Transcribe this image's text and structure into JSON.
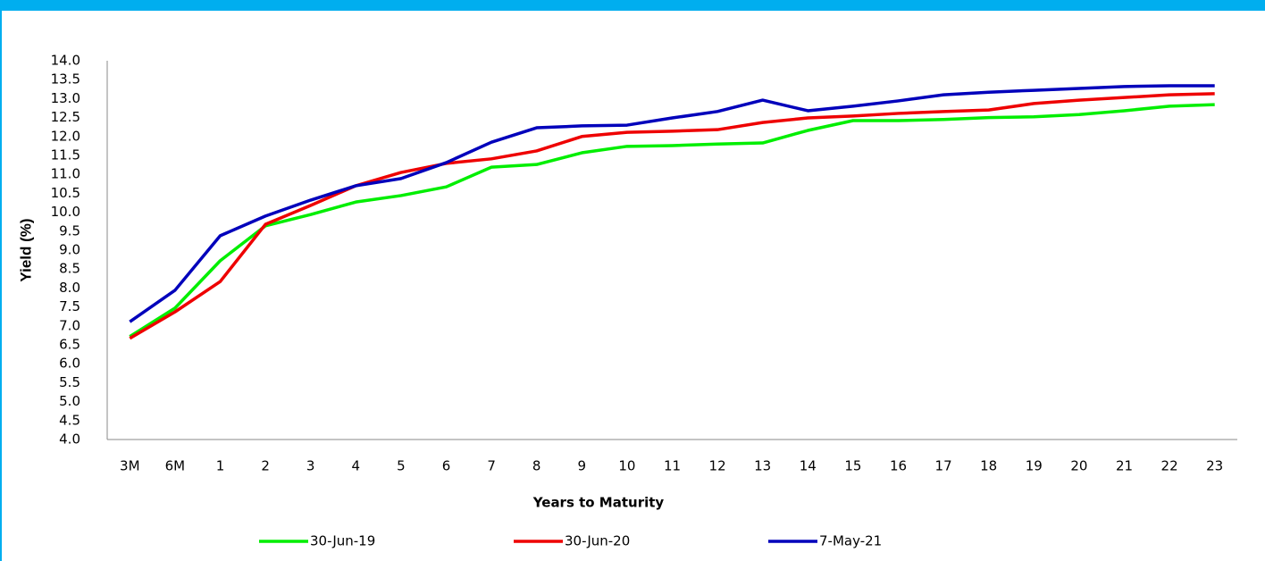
{
  "chart_data": {
    "type": "line",
    "y_label": "Yield (%)",
    "x_label": "Years to Maturity",
    "categories": [
      "3M",
      "6M",
      "1",
      "2",
      "3",
      "4",
      "5",
      "6",
      "7",
      "8",
      "9",
      "10",
      "11",
      "12",
      "13",
      "14",
      "15",
      "16",
      "17",
      "18",
      "19",
      "20",
      "21",
      "22",
      "23"
    ],
    "series": [
      {
        "name": "30-Jun-19",
        "color": "#00ee00",
        "values": [
          6.72,
          7.47,
          8.72,
          9.64,
          9.94,
          10.27,
          10.44,
          10.67,
          11.19,
          11.26,
          11.57,
          11.74,
          11.76,
          11.8,
          11.83,
          12.16,
          12.42,
          12.42,
          12.45,
          12.5,
          12.52,
          12.58,
          12.68,
          12.8,
          12.84
        ]
      },
      {
        "name": "30-Jun-20",
        "color": "#ee0000",
        "values": [
          6.67,
          7.37,
          8.17,
          9.68,
          10.18,
          10.7,
          11.05,
          11.29,
          11.41,
          11.62,
          12.0,
          12.11,
          12.14,
          12.18,
          12.37,
          12.49,
          12.54,
          12.61,
          12.66,
          12.7,
          12.87,
          12.96,
          13.03,
          13.1,
          13.13
        ]
      },
      {
        "name": "7-May-21",
        "color": "#0000bb",
        "values": [
          7.11,
          7.94,
          9.38,
          9.9,
          10.32,
          10.7,
          10.89,
          11.31,
          11.85,
          12.23,
          12.28,
          12.3,
          12.49,
          12.66,
          12.96,
          12.68,
          12.8,
          12.94,
          13.1,
          13.17,
          13.22,
          13.27,
          13.32,
          13.34,
          13.34
        ]
      }
    ],
    "ylim": [
      4,
      14
    ],
    "yticks": [
      {
        "value": 4,
        "label": "4.0"
      },
      {
        "value": 4.5,
        "label": "4.5"
      },
      {
        "value": 5,
        "label": "5.0"
      },
      {
        "value": 5.5,
        "label": "5.5"
      },
      {
        "value": 6,
        "label": "6.0"
      },
      {
        "value": 6.5,
        "label": "6.5"
      },
      {
        "value": 7,
        "label": "7.0"
      },
      {
        "value": 7.5,
        "label": "7.5"
      },
      {
        "value": 8,
        "label": "8.0"
      },
      {
        "value": 8.5,
        "label": "8.5"
      },
      {
        "value": 9,
        "label": "9.0"
      },
      {
        "value": 9.5,
        "label": "9.5"
      },
      {
        "value": 10,
        "label": "10.0"
      },
      {
        "value": 10.5,
        "label": "10.5"
      },
      {
        "value": 11,
        "label": "11.0"
      },
      {
        "value": 11.5,
        "label": "11.5"
      },
      {
        "value": 12,
        "label": "12.0"
      },
      {
        "value": 12.5,
        "label": "12.5"
      },
      {
        "value": 13,
        "label": "13.0"
      },
      {
        "value": 13.5,
        "label": "13.5"
      },
      {
        "value": 14,
        "label": "14.0"
      }
    ],
    "grid": false,
    "legend": "bottom"
  }
}
